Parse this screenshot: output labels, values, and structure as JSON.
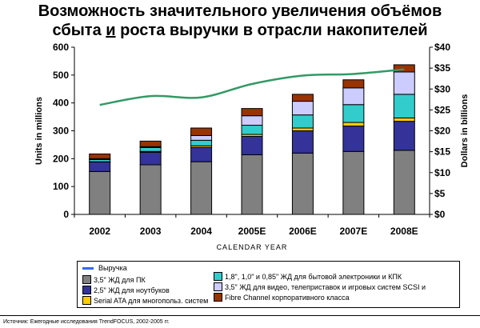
{
  "title_line1": "Возможность значительного увеличения объёмов",
  "title_line2_pre": "сбыта ",
  "title_line2_u": "и",
  "title_line2_post": " роста выручки в отрасли накопителей",
  "source": "Источник: Ежегодные исследования TrendFOCUS, 2002-2005 гг.",
  "chart_data": {
    "type": "bar",
    "stacked": true,
    "categories": [
      "2002",
      "2003",
      "2004",
      "2005E",
      "2006E",
      "2007E",
      "2008E"
    ],
    "xlabel": "CALENDAR YEAR",
    "ylabel": "Units in millions",
    "y2label": "Dollars in billions",
    "ylim": [
      0,
      600
    ],
    "yticks": [
      "0",
      "100",
      "200",
      "300",
      "400",
      "500",
      "600"
    ],
    "y2lim": [
      0,
      40
    ],
    "y2ticks": [
      "$0",
      "$5",
      "$10",
      "$15",
      "$20",
      "$25",
      "$30",
      "$35",
      "$40"
    ],
    "series": [
      {
        "name": "3,5\" ЖД для ПК",
        "color": "#808080",
        "values": [
          154,
          178,
          189,
          214,
          220,
          226,
          230
        ]
      },
      {
        "name": "2,5\" ЖД для ноутбуков",
        "color": "#333399",
        "values": [
          34,
          45,
          51,
          66,
          80,
          91,
          104
        ]
      },
      {
        "name": "Serial ATA для многопольз. систем",
        "color": "#FFCC00",
        "values": [
          1,
          3,
          6,
          7,
          10,
          13,
          12
        ]
      },
      {
        "name": "1,8\", 1,0\" и 0,85\" ЖД для бытовой электроники и КПК",
        "color": "#33CCCC",
        "values": [
          8,
          14,
          20,
          33,
          47,
          64,
          85
        ]
      },
      {
        "name": "3,5\" ЖД для видео, телеприставок и игровых систем SCSI и",
        "color": "#CCCCFF",
        "values": [
          3,
          3,
          17,
          34,
          49,
          60,
          80
        ]
      },
      {
        "name": "Fibre Channel корпоративного класса",
        "color": "#993300",
        "values": [
          17,
          20,
          27,
          26,
          25,
          29,
          26
        ]
      }
    ],
    "line": {
      "name": "Выручка",
      "color": "#339966",
      "legend_color": "#3366FF",
      "axis": "right",
      "values": [
        26.2,
        28.3,
        28.0,
        31.2,
        33.2,
        33.6,
        34.7
      ]
    }
  }
}
